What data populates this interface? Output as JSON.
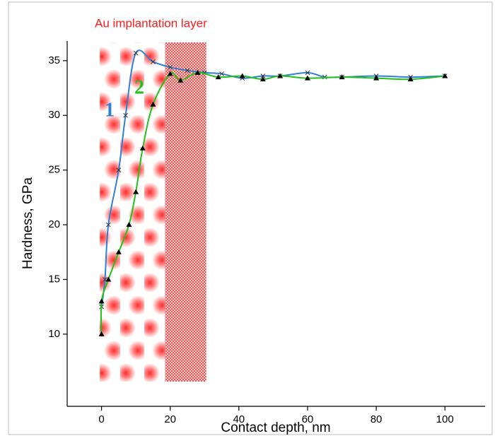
{
  "chart_data": {
    "type": "line",
    "x_label": "Contact depth, nm",
    "y_label": "Hardness, GPa",
    "annotations": [
      "Au implantation layer",
      "1",
      "2"
    ],
    "xlim": [
      -10,
      111.7
    ],
    "ylim": [
      3.4,
      36.8
    ],
    "xticks": [
      0,
      20,
      40,
      60,
      80,
      100
    ],
    "yticks": [
      10,
      15,
      20,
      25,
      30,
      35
    ],
    "shaded_regions": [
      [
        -0.5,
        18.5
      ],
      [
        18.5,
        30.5
      ]
    ],
    "series": [
      {
        "name": "1",
        "color": "#2f7fd6",
        "marker": "x",
        "x": [
          0,
          1,
          2,
          5,
          7,
          10,
          15,
          20,
          25,
          30,
          35,
          41,
          47,
          52,
          60,
          65,
          70,
          80,
          90,
          100
        ],
        "values": [
          12.5,
          15,
          20,
          25,
          30,
          35.7,
          34.9,
          34.4,
          34.1,
          33.9,
          33.8,
          33.4,
          33.6,
          33.6,
          33.9,
          33.5,
          33.5,
          33.6,
          33.5,
          33.6
        ]
      },
      {
        "name": "2",
        "color": "#22c21a",
        "marker": "triangle",
        "x": [
          0,
          0,
          2,
          5,
          8,
          10,
          12,
          15,
          20,
          23,
          28,
          34,
          41,
          47,
          52,
          60,
          70,
          80,
          90,
          100
        ],
        "values": [
          10,
          13,
          15,
          17.5,
          20,
          23,
          27,
          31,
          33.8,
          33.2,
          33.9,
          33.5,
          33.6,
          33.3,
          33.6,
          33.4,
          33.5,
          33.4,
          33.3,
          33.6
        ]
      }
    ]
  }
}
